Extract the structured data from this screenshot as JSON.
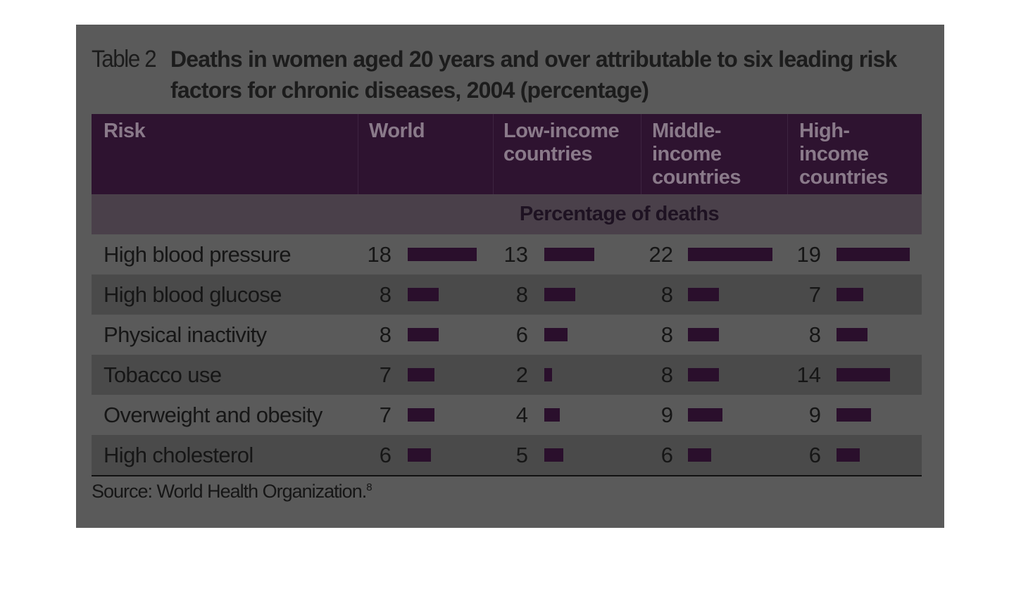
{
  "title": {
    "label": "Table 2",
    "text": "Deaths in women aged 20 years and over attributable to six leading risk factors for chronic diseases, 2004 (percentage)"
  },
  "colors": {
    "panel_bg": "#5a5a5a",
    "header_bg": "#2e1330",
    "bar": "#2a0f2c"
  },
  "chart_data": {
    "type": "table",
    "title": "Deaths in women aged 20 years and over attributable to six leading risk factors for chronic diseases, 2004 (percentage)",
    "columns": [
      "Risk",
      "World",
      "Low-income countries",
      "Middle-income countries",
      "High-income countries"
    ],
    "column_labels": {
      "risk": "Risk",
      "world": "World",
      "low": "Low-income countries",
      "middle": "Middle-income countries",
      "high": "High-income countries"
    },
    "subheader": "Percentage of deaths",
    "rows": [
      {
        "risk": "High blood pressure",
        "values": [
          18,
          13,
          22,
          19
        ]
      },
      {
        "risk": "High blood glucose",
        "values": [
          8,
          8,
          8,
          7
        ]
      },
      {
        "risk": "Physical inactivity",
        "values": [
          8,
          6,
          8,
          8
        ]
      },
      {
        "risk": "Tobacco use",
        "values": [
          7,
          2,
          8,
          14
        ]
      },
      {
        "risk": "Overweight and obesity",
        "values": [
          7,
          4,
          9,
          9
        ]
      },
      {
        "risk": "High cholesterol",
        "values": [
          6,
          5,
          6,
          6
        ]
      }
    ]
  },
  "source": {
    "text": "Source: World Health Organization.",
    "ref": "8"
  }
}
